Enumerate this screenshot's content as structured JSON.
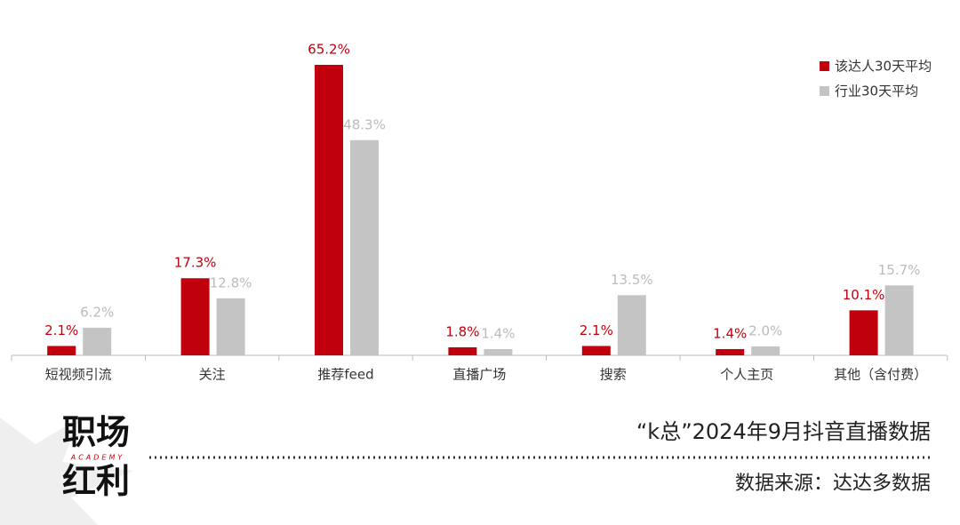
{
  "chart_data": {
    "type": "bar",
    "categories": [
      "短视频引流",
      "关注",
      "推荐feed",
      "直播广场",
      "搜索",
      "个人主页",
      "其他（含付费）"
    ],
    "series": [
      {
        "name": "该达人30天平均",
        "color": "#c0000c",
        "values": [
          2.1,
          17.3,
          65.2,
          1.8,
          2.1,
          1.4,
          10.1
        ],
        "value_labels": [
          "2.1%",
          "17.3%",
          "65.2%",
          "1.8%",
          "2.1%",
          "1.4%",
          "10.1%"
        ]
      },
      {
        "name": "行业30天平均",
        "color": "#c4c4c4",
        "values": [
          6.2,
          12.8,
          48.3,
          1.4,
          13.5,
          2.0,
          15.7
        ],
        "value_labels": [
          "6.2%",
          "12.8%",
          "48.3%",
          "1.4%",
          "13.5%",
          "2.0%",
          "15.7%"
        ]
      }
    ],
    "legend": "top-right"
  },
  "footer": {
    "title": "“k总”2024年9月抖音直播数据",
    "source": "数据来源：达达多数据"
  },
  "logo": {
    "line1": "职场",
    "tagline": "ACADEMY",
    "line2": "红利"
  }
}
